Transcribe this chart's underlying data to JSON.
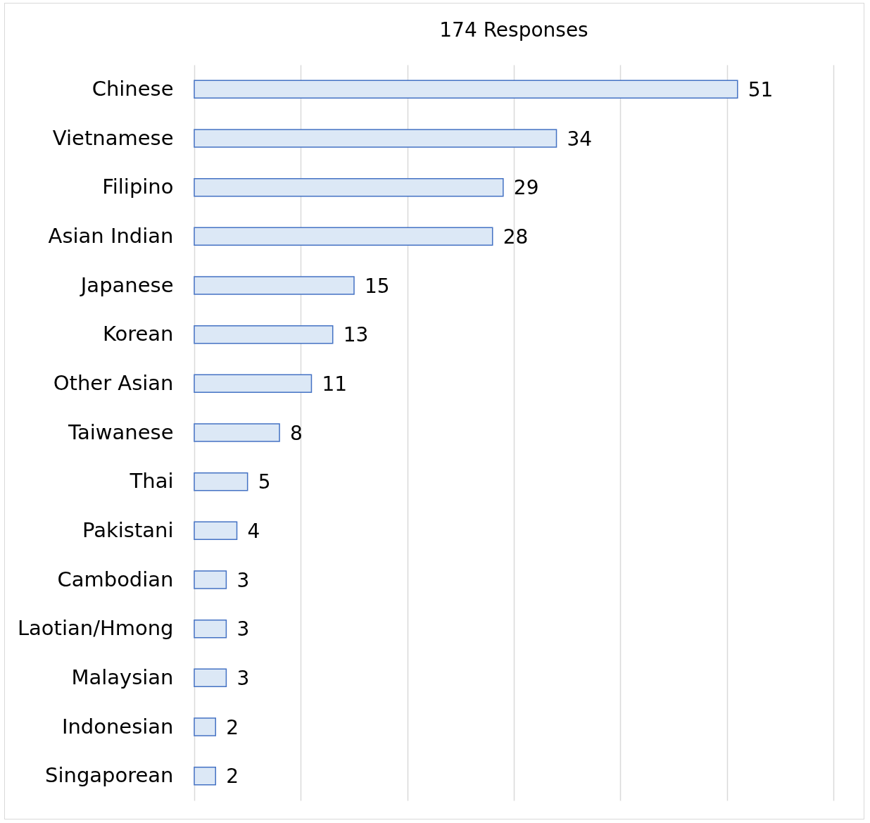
{
  "chart_data": {
    "type": "bar",
    "orientation": "horizontal",
    "title": "174 Responses",
    "categories": [
      "Chinese",
      "Vietnamese",
      "Filipino",
      "Asian Indian",
      "Japanese",
      "Korean",
      "Other Asian",
      "Taiwanese",
      "Thai",
      "Pakistani",
      "Cambodian",
      "Laotian/Hmong",
      "Malaysian",
      "Indonesian",
      "Singaporean"
    ],
    "values": [
      51,
      34,
      29,
      28,
      15,
      13,
      11,
      8,
      5,
      4,
      3,
      3,
      3,
      2,
      2
    ],
    "color": "#dce8f6",
    "xlim": [
      0,
      60
    ],
    "xticks": [
      0,
      10,
      20,
      30,
      40,
      50,
      60
    ],
    "grid": "x",
    "tick_labels": "y",
    "data_labels": true
  }
}
